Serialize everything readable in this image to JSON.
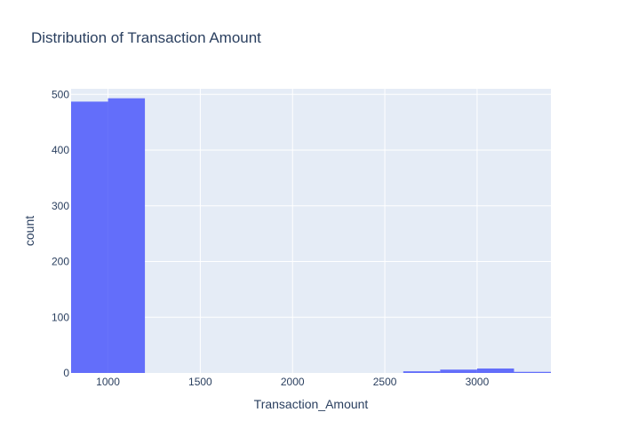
{
  "chart_data": {
    "type": "bar",
    "title": "Distribution of Transaction Amount",
    "xlabel": "Transaction_Amount",
    "ylabel": "count",
    "xlim": [
      800,
      3400
    ],
    "ylim": [
      0,
      510
    ],
    "x_ticks": [
      1000,
      1500,
      2000,
      2500,
      3000
    ],
    "y_ticks": [
      0,
      100,
      200,
      300,
      400,
      500
    ],
    "grid": true,
    "bin_width": 200,
    "bins": [
      {
        "x0": 800,
        "x1": 1000,
        "count": 487
      },
      {
        "x0": 1000,
        "x1": 1200,
        "count": 493
      },
      {
        "x0": 1200,
        "x1": 1400,
        "count": 0
      },
      {
        "x0": 1400,
        "x1": 1600,
        "count": 0
      },
      {
        "x0": 1600,
        "x1": 1800,
        "count": 0
      },
      {
        "x0": 1800,
        "x1": 2000,
        "count": 0
      },
      {
        "x0": 2000,
        "x1": 2200,
        "count": 0
      },
      {
        "x0": 2200,
        "x1": 2400,
        "count": 0
      },
      {
        "x0": 2400,
        "x1": 2600,
        "count": 0
      },
      {
        "x0": 2600,
        "x1": 2800,
        "count": 3
      },
      {
        "x0": 2800,
        "x1": 3000,
        "count": 6
      },
      {
        "x0": 3000,
        "x1": 3200,
        "count": 8
      },
      {
        "x0": 3200,
        "x1": 3400,
        "count": 2
      }
    ],
    "colors": {
      "bar": "#636efa",
      "plot_background": "#e5ecf6",
      "grid": "#ffffff",
      "text": "#2a3f5f"
    }
  }
}
